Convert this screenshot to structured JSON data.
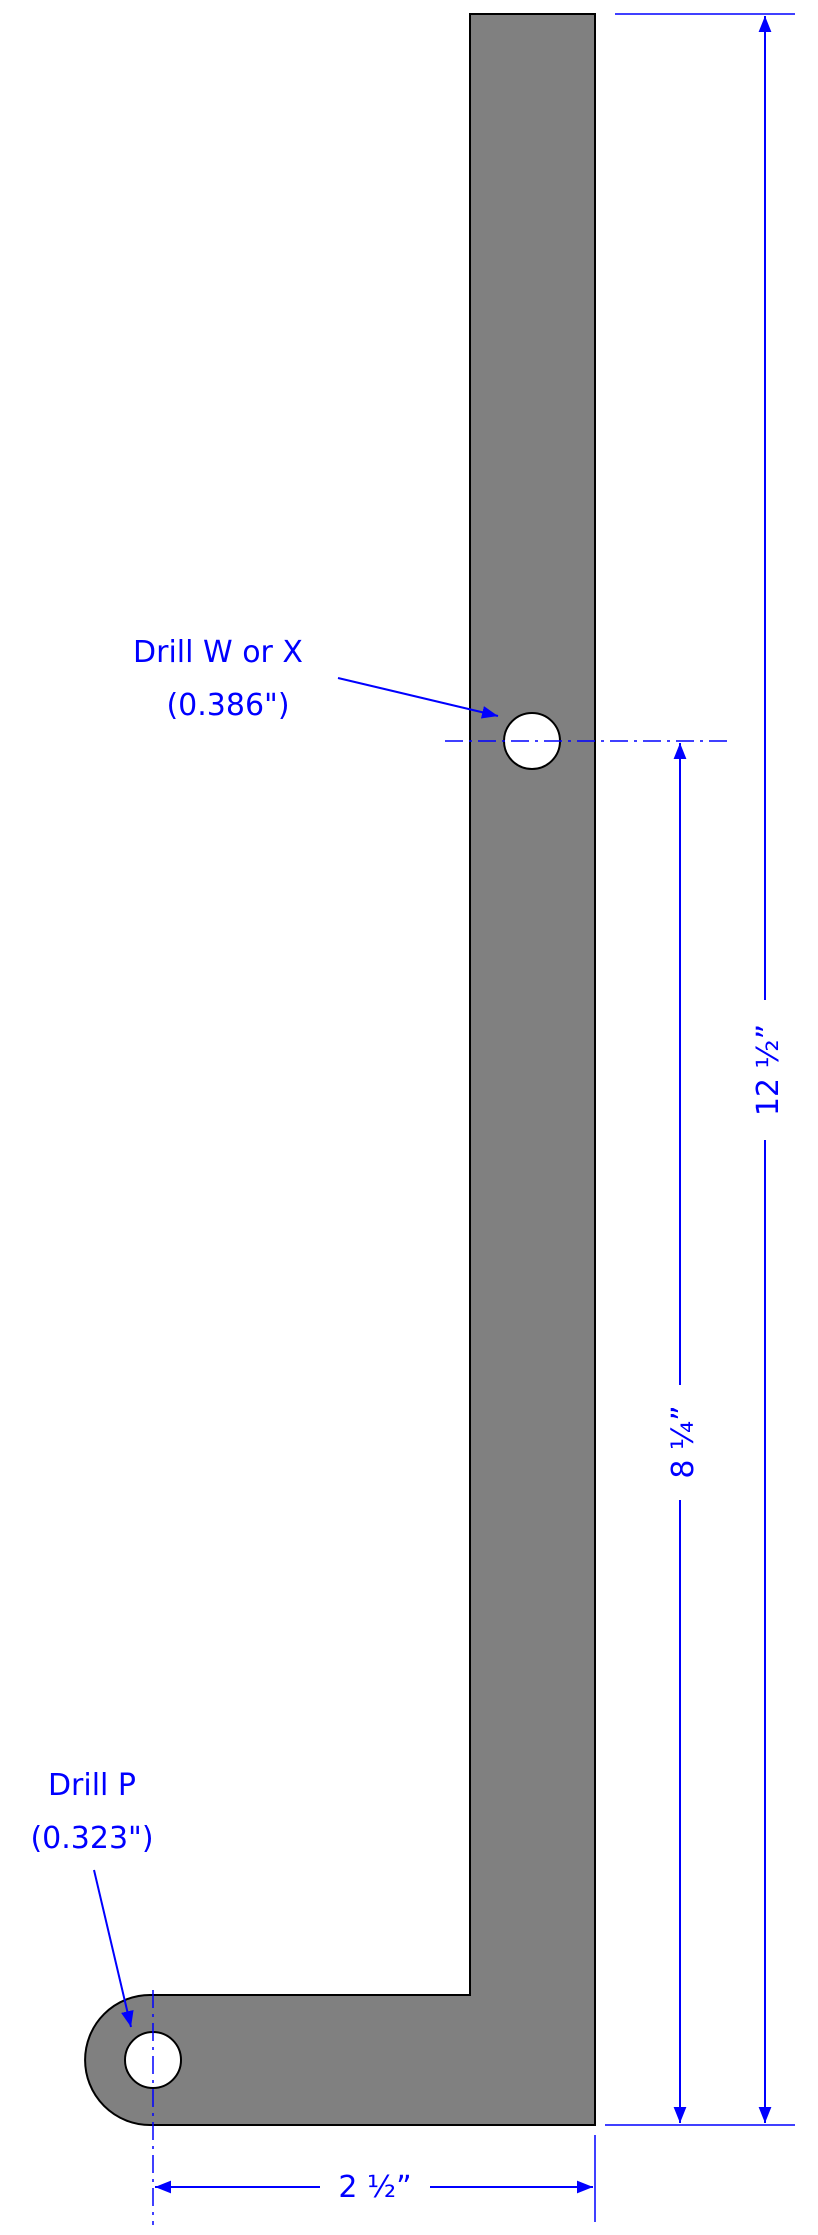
{
  "labels": {
    "drill_top_name": "Drill W or X",
    "drill_top_size": "(0.386\")",
    "drill_bottom_name": "Drill P",
    "drill_bottom_size": "(0.323\")",
    "dim_total_height": "12 ½”",
    "dim_hole_spacing": "8 ¼”",
    "dim_width": "2 ½”"
  },
  "colors": {
    "part_fill": "#808080",
    "part_stroke": "#000000",
    "dimension": "#0000ff",
    "hole_fill": "#ffffff"
  }
}
